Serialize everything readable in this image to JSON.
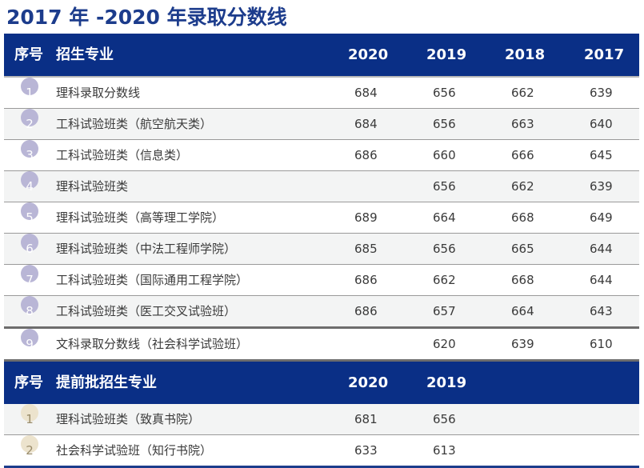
{
  "title": "2017 年 -2020 年录取分数线",
  "table1": {
    "headers": [
      "序号",
      "招生专业",
      "2020",
      "2019",
      "2018",
      "2017"
    ],
    "rows": [
      {
        "no": "1",
        "major": "理科录取分数线",
        "y2020": "684",
        "y2019": "656",
        "y2018": "662",
        "y2017": "639"
      },
      {
        "no": "2",
        "major": "工科试验班类（航空航天类）",
        "y2020": "684",
        "y2019": "656",
        "y2018": "663",
        "y2017": "640"
      },
      {
        "no": "3",
        "major": "工科试验班类（信息类）",
        "y2020": "686",
        "y2019": "660",
        "y2018": "666",
        "y2017": "645"
      },
      {
        "no": "4",
        "major": "理科试验班类",
        "y2020": "",
        "y2019": "656",
        "y2018": "662",
        "y2017": "639"
      },
      {
        "no": "5",
        "major": "理科试验班类（高等理工学院）",
        "y2020": "689",
        "y2019": "664",
        "y2018": "668",
        "y2017": "649"
      },
      {
        "no": "6",
        "major": "理科试验班类（中法工程师学院）",
        "y2020": "685",
        "y2019": "656",
        "y2018": "665",
        "y2017": "644"
      },
      {
        "no": "7",
        "major": "工科试验班类（国际通用工程学院）",
        "y2020": "686",
        "y2019": "662",
        "y2018": "668",
        "y2017": "644"
      },
      {
        "no": "8",
        "major": "工科试验班类（医工交叉试验班）",
        "y2020": "686",
        "y2019": "657",
        "y2018": "664",
        "y2017": "643"
      },
      {
        "no": "9",
        "major": "文科录取分数线（社会科学试验班）",
        "y2020": "",
        "y2019": "620",
        "y2018": "639",
        "y2017": "610"
      }
    ]
  },
  "table2": {
    "headers": [
      "序号",
      "提前批招生专业",
      "2020",
      "2019"
    ],
    "rows": [
      {
        "no": "1",
        "major": "理科试验班类（致真书院）",
        "y2020": "681",
        "y2019": "656"
      },
      {
        "no": "2",
        "major": "社会科学试验班（知行书院）",
        "y2020": "633",
        "y2019": "613"
      }
    ]
  },
  "colors": {
    "header_bg": "#0a2f86",
    "title": "#1c3c8c",
    "badge_purple": "#b9b6d6",
    "badge_beige": "#ece3cd",
    "row_alt": "#f3f4f4"
  }
}
